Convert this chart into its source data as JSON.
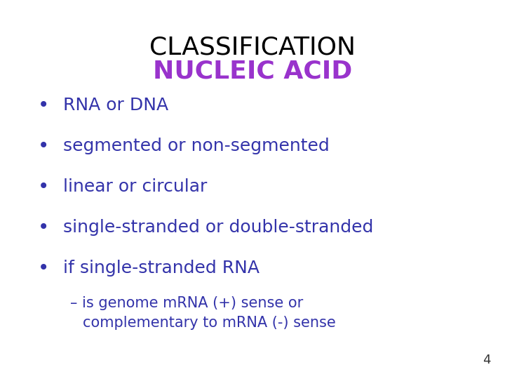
{
  "title_line1": "CLASSIFICATION",
  "title_line2": "NUCLEIC ACID",
  "title_line1_color": "#000000",
  "title_line2_color": "#9933CC",
  "bullet_color": "#3333AA",
  "bullet_points": [
    "RNA or DNA",
    "segmented or non-segmented",
    "linear or circular",
    "single-stranded or double-stranded",
    "if single-stranded RNA"
  ],
  "sub_bullet_line1": "– is genome mRNA (+) sense or",
  "sub_bullet_line2": "complementary to mRNA (-) sense",
  "sub_bullet_color": "#3333AA",
  "page_number": "4",
  "background_color": "#FFFFFF",
  "title_fontsize": 26,
  "bullet_fontsize": 18,
  "sub_bullet_fontsize": 15
}
